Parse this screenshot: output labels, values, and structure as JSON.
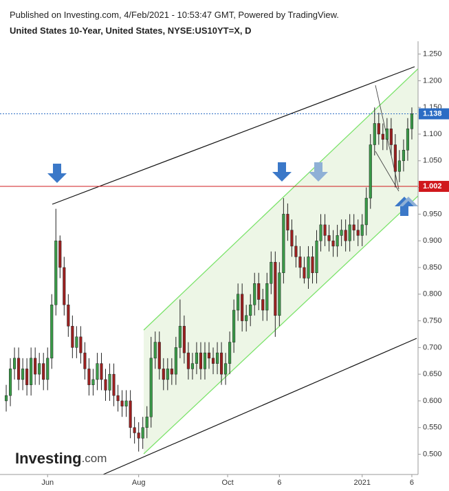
{
  "header": {
    "published": "Published on Investing.com, 4/Feb/2021 - 10:53:47 GMT, Powered by TradingView.",
    "title": "United States 10-Year, United States, NYSE:US10YT=X, D"
  },
  "chart_data": {
    "type": "candlestick",
    "logo": {
      "brand": "Investing",
      "suffix": ".com"
    },
    "up_color": "#3a9a48",
    "down_color": "#9b2020",
    "open": [
      0.6,
      0.61,
      0.66,
      0.68,
      0.64,
      0.66,
      0.63,
      0.68,
      0.65,
      0.67,
      0.64,
      0.68,
      0.78,
      0.9,
      0.85,
      0.78,
      0.74,
      0.7,
      0.72,
      0.69,
      0.66,
      0.63,
      0.64,
      0.67,
      0.64,
      0.62,
      0.65,
      0.61,
      0.6,
      0.59,
      0.6,
      0.55,
      0.54,
      0.53,
      0.55,
      0.57,
      0.68,
      0.71,
      0.66,
      0.64,
      0.66,
      0.65,
      0.7,
      0.74,
      0.69,
      0.66,
      0.67,
      0.69,
      0.66,
      0.69,
      0.68,
      0.67,
      0.69,
      0.65,
      0.67,
      0.71,
      0.77,
      0.8,
      0.75,
      0.76,
      0.78,
      0.82,
      0.79,
      0.77,
      0.82,
      0.86,
      0.76,
      0.84,
      0.95,
      0.92,
      0.89,
      0.87,
      0.85,
      0.83,
      0.87,
      0.84,
      0.9,
      0.93,
      0.91,
      0.9,
      0.89,
      0.91,
      0.92,
      0.9,
      0.93,
      0.92,
      0.91,
      0.93,
      0.98,
      1.08,
      1.12,
      1.1,
      1.09,
      1.11,
      1.08,
      1.03,
      1.05,
      1.07,
      1.11
    ],
    "high": [
      0.63,
      0.68,
      0.7,
      0.7,
      0.68,
      0.68,
      0.7,
      0.7,
      0.69,
      0.69,
      0.7,
      0.8,
      0.96,
      0.91,
      0.87,
      0.8,
      0.76,
      0.74,
      0.74,
      0.71,
      0.68,
      0.66,
      0.69,
      0.69,
      0.66,
      0.67,
      0.67,
      0.63,
      0.62,
      0.62,
      0.62,
      0.57,
      0.56,
      0.57,
      0.59,
      0.72,
      0.73,
      0.73,
      0.68,
      0.68,
      0.68,
      0.72,
      0.79,
      0.76,
      0.71,
      0.69,
      0.71,
      0.71,
      0.71,
      0.71,
      0.7,
      0.71,
      0.71,
      0.69,
      0.73,
      0.79,
      0.82,
      0.82,
      0.78,
      0.8,
      0.84,
      0.84,
      0.81,
      0.84,
      0.88,
      0.88,
      0.86,
      0.98,
      0.97,
      0.94,
      0.91,
      0.89,
      0.87,
      0.89,
      0.89,
      0.92,
      0.95,
      0.95,
      0.93,
      0.92,
      0.93,
      0.94,
      0.94,
      0.95,
      0.95,
      0.94,
      0.95,
      1.0,
      1.1,
      1.15,
      1.14,
      1.12,
      1.13,
      1.13,
      1.1,
      1.07,
      1.09,
      1.13,
      1.15
    ],
    "low": [
      0.58,
      0.59,
      0.64,
      0.62,
      0.62,
      0.61,
      0.61,
      0.63,
      0.63,
      0.62,
      0.62,
      0.66,
      0.76,
      0.83,
      0.76,
      0.72,
      0.68,
      0.68,
      0.67,
      0.64,
      0.61,
      0.61,
      0.62,
      0.62,
      0.6,
      0.6,
      0.59,
      0.58,
      0.57,
      0.57,
      0.53,
      0.52,
      0.505,
      0.51,
      0.53,
      0.55,
      0.66,
      0.64,
      0.62,
      0.62,
      0.63,
      0.63,
      0.68,
      0.67,
      0.64,
      0.64,
      0.65,
      0.64,
      0.64,
      0.66,
      0.65,
      0.65,
      0.63,
      0.63,
      0.65,
      0.69,
      0.75,
      0.73,
      0.73,
      0.74,
      0.76,
      0.77,
      0.75,
      0.75,
      0.8,
      0.72,
      0.74,
      0.82,
      0.9,
      0.87,
      0.85,
      0.83,
      0.82,
      0.81,
      0.82,
      0.82,
      0.88,
      0.89,
      0.88,
      0.87,
      0.87,
      0.89,
      0.88,
      0.88,
      0.9,
      0.89,
      0.89,
      0.91,
      0.96,
      1.06,
      1.08,
      1.07,
      1.07,
      1.06,
      1.0,
      1.01,
      1.03,
      1.05,
      1.09
    ],
    "close": [
      0.61,
      0.66,
      0.68,
      0.64,
      0.66,
      0.63,
      0.68,
      0.65,
      0.67,
      0.64,
      0.68,
      0.78,
      0.9,
      0.85,
      0.78,
      0.74,
      0.7,
      0.72,
      0.69,
      0.66,
      0.63,
      0.64,
      0.67,
      0.64,
      0.62,
      0.65,
      0.61,
      0.6,
      0.59,
      0.6,
      0.55,
      0.54,
      0.53,
      0.55,
      0.57,
      0.68,
      0.71,
      0.66,
      0.64,
      0.66,
      0.65,
      0.7,
      0.74,
      0.69,
      0.66,
      0.67,
      0.69,
      0.66,
      0.69,
      0.68,
      0.67,
      0.69,
      0.65,
      0.67,
      0.71,
      0.77,
      0.8,
      0.75,
      0.76,
      0.78,
      0.82,
      0.79,
      0.77,
      0.82,
      0.86,
      0.76,
      0.84,
      0.95,
      0.92,
      0.89,
      0.87,
      0.85,
      0.83,
      0.87,
      0.84,
      0.9,
      0.93,
      0.91,
      0.9,
      0.89,
      0.91,
      0.92,
      0.9,
      0.93,
      0.92,
      0.91,
      0.93,
      0.98,
      1.08,
      1.12,
      1.1,
      1.09,
      1.11,
      1.08,
      1.03,
      1.05,
      1.07,
      1.11,
      1.138
    ],
    "xlim": [
      -1.5,
      99.5
    ],
    "xticks": [
      {
        "value": 10,
        "label": "Jun"
      },
      {
        "value": 32,
        "label": "Aug"
      },
      {
        "value": 53.5,
        "label": "Oct"
      },
      {
        "value": 66,
        "label": "6"
      },
      {
        "value": 86,
        "label": "2021"
      },
      {
        "value": 98,
        "label": "6"
      }
    ],
    "ylim": [
      0.462,
      1.274
    ],
    "yticks": [
      {
        "value": 0.5,
        "label": "0.500"
      },
      {
        "value": 0.55,
        "label": "0.550"
      },
      {
        "value": 0.6,
        "label": "0.600"
      },
      {
        "value": 0.65,
        "label": "0.650"
      },
      {
        "value": 0.7,
        "label": "0.700"
      },
      {
        "value": 0.75,
        "label": "0.750"
      },
      {
        "value": 0.8,
        "label": "0.800"
      },
      {
        "value": 0.85,
        "label": "0.850"
      },
      {
        "value": 0.9,
        "label": "0.900"
      },
      {
        "value": 0.95,
        "label": "0.950"
      },
      {
        "value": 1.0,
        "label": "1.000"
      },
      {
        "value": 1.05,
        "label": "1.050"
      },
      {
        "value": 1.1,
        "label": "1.100"
      },
      {
        "value": 1.15,
        "label": "1.150"
      },
      {
        "value": 1.2,
        "label": "1.200"
      },
      {
        "value": 1.25,
        "label": "1.250"
      }
    ],
    "last_price": 1.138,
    "last_price_color": "#2b6cc4",
    "level": 1.002,
    "level_color": "#d0181c"
  }
}
